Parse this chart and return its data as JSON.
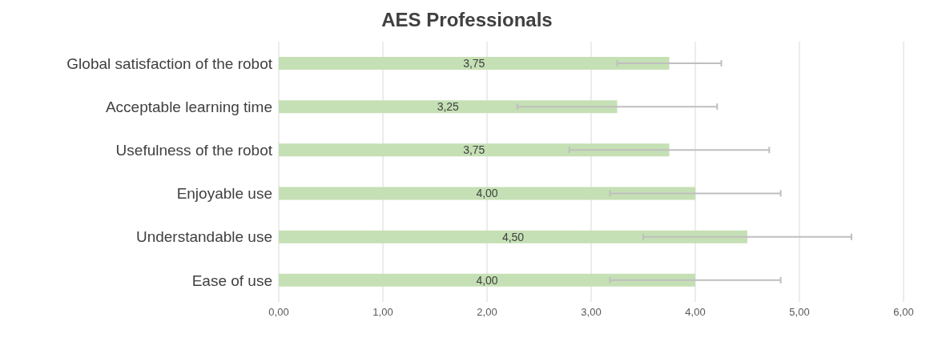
{
  "chart_data": {
    "type": "bar",
    "orientation": "horizontal",
    "title": "AES Professionals",
    "categories": [
      "Global satisfaction of the robot",
      "Acceptable learning time",
      "Usefulness of the robot",
      "Enjoyable use",
      "Understandable use",
      "Ease of use"
    ],
    "values": [
      3.75,
      3.25,
      3.75,
      4.0,
      4.5,
      4.0
    ],
    "value_labels": [
      "3,75",
      "3,25",
      "3,75",
      "4,00",
      "4,50",
      "4,00"
    ],
    "errors": [
      0.5,
      0.96,
      0.96,
      0.82,
      1.0,
      0.82
    ],
    "color": "#c5e0b4",
    "xlim": [
      0,
      6
    ],
    "xticks": [
      {
        "value": 0,
        "label": "0,00"
      },
      {
        "value": 1,
        "label": "1,00"
      },
      {
        "value": 2,
        "label": "2,00"
      },
      {
        "value": 3,
        "label": "3,00"
      },
      {
        "value": 4,
        "label": "4,00"
      },
      {
        "value": 5,
        "label": "5,00"
      },
      {
        "value": 6,
        "label": "6,00"
      }
    ],
    "grid": "x"
  }
}
